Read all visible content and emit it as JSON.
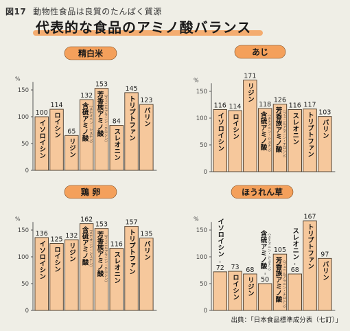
{
  "figure": {
    "label": "図17",
    "caption": "動物性食品は良質のたんぱく質源",
    "title": "代表的な食品のアミノ酸バランス",
    "source": "出典：「日本食品標準成分表（七訂）」"
  },
  "colors": {
    "bar_fill": "#f6c89c",
    "bar_stroke": "#4a3a2a",
    "title_pill": "#f4a05b",
    "axis": "#555555",
    "background": "#efeee6"
  },
  "chart_data": [
    {
      "type": "bar",
      "title": "精白米",
      "ylabel": "%",
      "ylim": [
        0,
        175
      ],
      "yticks": [
        0,
        50,
        100,
        150
      ],
      "categories": [
        "イソロイシン",
        "ロイシン",
        "リジン",
        "含硫アミノ酸",
        "芳香族アミノ酸",
        "スレオニン",
        "トリプトファン",
        "バリン"
      ],
      "sublabels": [
        "",
        "",
        "",
        "（メチオニン・シスチン）",
        "（フェニルアラニン・チロシン）",
        "",
        "",
        ""
      ],
      "values": [
        100,
        114,
        65,
        132,
        153,
        84,
        145,
        123
      ],
      "grid": false
    },
    {
      "type": "bar",
      "title": "あじ",
      "ylabel": "%",
      "ylim": [
        0,
        175
      ],
      "yticks": [
        0,
        50,
        100,
        150
      ],
      "categories": [
        "イソロイシン",
        "ロイシン",
        "リジン",
        "含硫アミノ酸",
        "芳香族アミノ酸",
        "スレオニン",
        "トリプトファン",
        "バリン"
      ],
      "sublabels": [
        "",
        "",
        "",
        "（メチオニン・シスチン）",
        "（フェニルアラニン・チロシン）",
        "",
        "",
        ""
      ],
      "values": [
        116,
        114,
        171,
        118,
        126,
        116,
        117,
        103
      ],
      "grid": false
    },
    {
      "type": "bar",
      "title": "鶏 卵",
      "ylabel": "%",
      "ylim": [
        0,
        175
      ],
      "yticks": [
        0,
        50,
        100,
        150
      ],
      "categories": [
        "イソロイシン",
        "ロイシン",
        "リジン",
        "含硫アミノ酸",
        "芳香族アミノ酸",
        "スレオニン",
        "トリプトファン",
        "バリン"
      ],
      "sublabels": [
        "",
        "",
        "",
        "（メチオニン・シスチン）",
        "（フェニルアラニン・チロシン）",
        "",
        "",
        ""
      ],
      "values": [
        136,
        125,
        132,
        162,
        153,
        116,
        157,
        135
      ],
      "grid": false
    },
    {
      "type": "bar",
      "title": "ほうれん草",
      "ylabel": "%",
      "ylim": [
        0,
        175
      ],
      "yticks": [
        0,
        50,
        100,
        150
      ],
      "categories": [
        "イソロイシン",
        "ロイシン",
        "リジン",
        "含硫アミノ酸",
        "芳香族アミノ酸",
        "スレオニン",
        "トリプトファン",
        "バリン"
      ],
      "sublabels": [
        "",
        "",
        "",
        "（メチオニン・シスチン）",
        "（フェニルアラニン・チロシン）",
        "",
        "",
        ""
      ],
      "values": [
        72,
        73,
        68,
        50,
        105,
        68,
        167,
        97
      ],
      "grid": false
    }
  ]
}
